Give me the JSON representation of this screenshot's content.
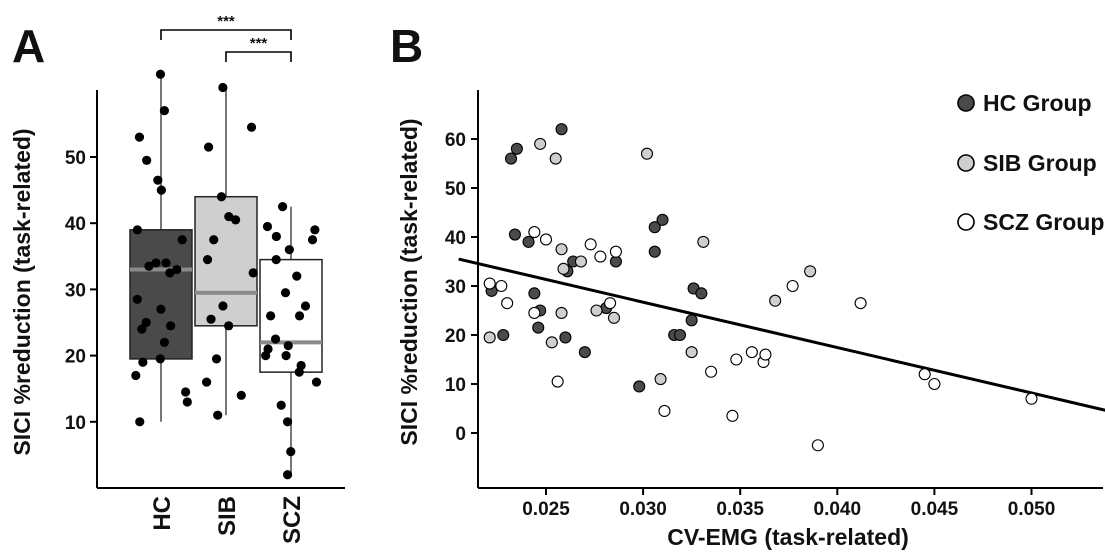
{
  "panel_a": {
    "letter": "A",
    "ylabel": "SICI %reduction (task-related)",
    "yticks": [
      10,
      20,
      30,
      40,
      50
    ],
    "significance": [
      {
        "from": "HC",
        "to": "SCZ",
        "label": "***"
      },
      {
        "from": "SIB",
        "to": "SCZ",
        "label": "***"
      }
    ]
  },
  "panel_b": {
    "letter": "B",
    "xlabel": "CV-EMG (task-related)",
    "ylabel": "SICI %reduction (task-related)",
    "xticks": [
      "0.025",
      "0.030",
      "0.035",
      "0.040",
      "0.045",
      "0.050"
    ],
    "yticks": [
      "0",
      "10",
      "20",
      "30",
      "40",
      "50",
      "60"
    ],
    "legend": [
      {
        "label": "HC Group",
        "color": "#4a4a4a"
      },
      {
        "label": "SIB Group",
        "color": "#cfcfcf"
      },
      {
        "label": "SCZ Group",
        "color": "#ffffff"
      }
    ]
  },
  "chart_data": [
    {
      "type": "box",
      "title": "",
      "xlabel": "",
      "ylabel": "SICI %reduction (task-related)",
      "ylim": [
        0,
        62
      ],
      "categories": [
        "HC",
        "SIB",
        "SCZ"
      ],
      "boxes": [
        {
          "name": "HC",
          "color": "#4a4a4a",
          "median_color": "#8a8a8a",
          "q1": 19.5,
          "median": 33,
          "q3": 39,
          "whisker_low": 10,
          "whisker_high": 62.5,
          "points": [
            62.5,
            57,
            53,
            49.5,
            46.5,
            45,
            39,
            37.5,
            34,
            34,
            33.5,
            33,
            32.5,
            28.5,
            27,
            25,
            24.5,
            24,
            22,
            19.5,
            19,
            17,
            14.5,
            13,
            10
          ]
        },
        {
          "name": "SIB",
          "color": "#cfcfcf",
          "median_color": "#8a8a8a",
          "q1": 24.5,
          "median": 29.5,
          "q3": 44,
          "whisker_low": 11,
          "whisker_high": 60.5,
          "points": [
            60.5,
            54.5,
            51.5,
            44,
            41,
            40.5,
            37.5,
            34.5,
            32.5,
            27.5,
            25.5,
            24.5,
            19.5,
            16,
            14,
            11
          ]
        },
        {
          "name": "SCZ",
          "color": "#ffffff",
          "median_color": "#8a8a8a",
          "q1": 17.5,
          "median": 22,
          "q3": 34.5,
          "whisker_low": 2,
          "whisker_high": 42.5,
          "points": [
            42.5,
            39.5,
            39,
            38,
            37.5,
            36,
            34.5,
            32,
            29.5,
            27.5,
            26,
            26,
            22.5,
            21.5,
            21,
            20,
            20,
            18.5,
            17.5,
            16,
            12.5,
            10,
            5.5,
            2
          ]
        }
      ]
    },
    {
      "type": "scatter",
      "title": "",
      "xlabel": "CV-EMG (task-related)",
      "ylabel": "SICI %reduction (task-related)",
      "xlim": [
        0.0205,
        0.0545
      ],
      "ylim": [
        -7,
        69
      ],
      "series": [
        {
          "name": "HC Group",
          "color": "#4a4a4a",
          "points": [
            [
              0.0232,
              56
            ],
            [
              0.0235,
              58
            ],
            [
              0.0258,
              62
            ],
            [
              0.0234,
              40.5
            ],
            [
              0.0241,
              39
            ],
            [
              0.0261,
              33
            ],
            [
              0.0264,
              35
            ],
            [
              0.0286,
              35
            ],
            [
              0.0306,
              37
            ],
            [
              0.0306,
              42
            ],
            [
              0.031,
              43.5
            ],
            [
              0.0222,
              29
            ],
            [
              0.0244,
              28.5
            ],
            [
              0.0246,
              21.5
            ],
            [
              0.0228,
              20
            ],
            [
              0.026,
              19.5
            ],
            [
              0.027,
              16.5
            ],
            [
              0.0298,
              9.5
            ],
            [
              0.0316,
              20
            ],
            [
              0.0319,
              20
            ],
            [
              0.0325,
              23
            ],
            [
              0.0326,
              29.5
            ],
            [
              0.033,
              28.5
            ],
            [
              0.0281,
              25.5
            ],
            [
              0.0247,
              25
            ]
          ]
        },
        {
          "name": "SIB Group",
          "color": "#cfcfcf",
          "points": [
            [
              0.0247,
              59
            ],
            [
              0.0255,
              56
            ],
            [
              0.0302,
              57
            ],
            [
              0.0331,
              39
            ],
            [
              0.0258,
              37.5
            ],
            [
              0.0259,
              33.5
            ],
            [
              0.0268,
              35
            ],
            [
              0.0276,
              25
            ],
            [
              0.0285,
              23.5
            ],
            [
              0.0253,
              18.5
            ],
            [
              0.0221,
              19.5
            ],
            [
              0.0258,
              24.5
            ],
            [
              0.0368,
              27
            ],
            [
              0.0386,
              33
            ],
            [
              0.0325,
              16.5
            ],
            [
              0.0309,
              11
            ]
          ]
        },
        {
          "name": "SCZ Group",
          "color": "#ffffff",
          "points": [
            [
              0.0244,
              41
            ],
            [
              0.025,
              39.5
            ],
            [
              0.0273,
              38.5
            ],
            [
              0.0278,
              36
            ],
            [
              0.0286,
              37
            ],
            [
              0.0221,
              30.5
            ],
            [
              0.0227,
              30
            ],
            [
              0.023,
              26.5
            ],
            [
              0.0244,
              24.5
            ],
            [
              0.0283,
              26.5
            ],
            [
              0.0256,
              10.5
            ],
            [
              0.0311,
              4.5
            ],
            [
              0.0346,
              3.5
            ],
            [
              0.0335,
              12.5
            ],
            [
              0.0348,
              15
            ],
            [
              0.0356,
              16.5
            ],
            [
              0.0362,
              14.5
            ],
            [
              0.0363,
              16
            ],
            [
              0.0377,
              30
            ],
            [
              0.0412,
              26.5
            ],
            [
              0.039,
              -2.5
            ],
            [
              0.0445,
              12
            ],
            [
              0.045,
              10
            ],
            [
              0.05,
              7
            ]
          ]
        }
      ],
      "regression": {
        "x": [
          0.0205,
          0.0545
        ],
        "y": [
          35.5,
          4
        ]
      }
    }
  ]
}
